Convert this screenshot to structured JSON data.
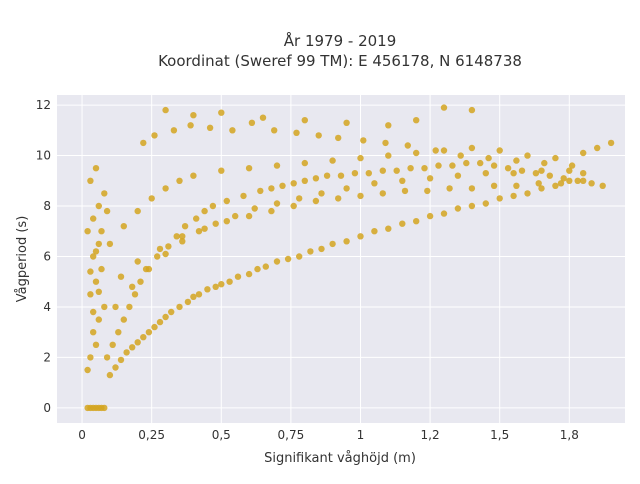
{
  "chart_data": {
    "type": "scatter",
    "title_line1": "År 1979 - 2019",
    "title_line2": "Koordinat (Sweref 99 TM): E 456178, N 6148738",
    "xlabel": "Signifikant våghöjd (m)",
    "ylabel": "Vågperiod (s)",
    "xlim": [
      -0.09,
      1.95
    ],
    "ylim": [
      -0.6,
      12.4
    ],
    "xticks": [
      0,
      0.25,
      0.5,
      0.75,
      1,
      1.25,
      1.5,
      1.75
    ],
    "xtick_labels": [
      "0",
      "0,25",
      "0,5",
      "0,75",
      "1",
      "1,2",
      "1,5",
      "1,8"
    ],
    "yticks": [
      0,
      2,
      4,
      6,
      8,
      10,
      12
    ],
    "ytick_labels": [
      "0",
      "2",
      "4",
      "6",
      "8",
      "10",
      "12"
    ],
    "grid": true,
    "colors": {
      "point": "#D4A520",
      "plot_bg": "#E8E8F0",
      "grid": "#FFFFFF",
      "text": "#333333"
    },
    "series": [
      {
        "x": [
          0.02,
          0.03,
          0.04,
          0.05,
          0.06,
          0.07,
          0.08,
          0.02,
          0.03,
          0.05,
          0.04,
          0.06,
          0.08,
          0.03,
          0.05,
          0.07,
          0.04,
          0.06,
          0.02,
          0.04,
          0.06,
          0.08,
          0.03,
          0.05,
          0.04,
          0.06,
          0.03,
          0.05,
          0.07,
          0.09,
          0.1,
          0.12,
          0.14,
          0.16,
          0.18,
          0.2,
          0.22,
          0.24,
          0.26,
          0.28,
          0.3,
          0.32,
          0.35,
          0.38,
          0.4,
          0.42,
          0.45,
          0.48,
          0.5,
          0.53,
          0.56,
          0.6,
          0.63,
          0.66,
          0.7,
          0.74,
          0.78,
          0.82,
          0.86,
          0.9,
          0.95,
          1.0,
          1.05,
          1.1,
          1.15,
          1.2,
          1.25,
          1.3,
          1.35,
          1.4,
          1.45,
          1.5,
          1.55,
          1.6,
          1.65,
          1.7,
          1.75,
          1.8,
          0.1,
          0.15,
          0.2,
          0.25,
          0.3,
          0.35,
          0.4,
          0.5,
          0.6,
          0.7,
          0.8,
          0.9,
          1.0,
          1.1,
          1.2,
          1.3,
          1.4,
          1.5,
          1.6,
          1.7,
          1.8,
          1.85,
          1.9,
          0.12,
          0.18,
          0.24,
          0.3,
          0.36,
          0.42,
          0.48,
          0.55,
          0.62,
          0.7,
          0.78,
          0.86,
          0.95,
          1.05,
          1.15,
          1.25,
          1.35,
          1.45,
          1.55,
          1.65,
          1.75,
          0.09,
          0.11,
          0.13,
          0.15,
          0.17,
          0.19,
          0.21,
          0.23,
          0.27,
          0.31,
          0.34,
          0.37,
          0.41,
          0.44,
          0.47,
          0.52,
          0.58,
          0.64,
          0.68,
          0.72,
          0.76,
          0.8,
          0.84,
          0.88,
          0.93,
          0.98,
          1.03,
          1.08,
          1.13,
          1.18,
          1.23,
          1.28,
          1.33,
          1.38,
          1.43,
          1.48,
          1.53,
          1.58,
          1.63,
          1.68,
          1.73,
          1.78,
          1.83,
          1.87,
          0.22,
          0.26,
          0.33,
          0.39,
          0.46,
          0.54,
          0.61,
          0.69,
          0.77,
          0.85,
          0.92,
          1.01,
          1.09,
          1.17,
          1.27,
          1.36,
          1.46,
          1.56,
          1.66,
          1.76,
          0.14,
          0.2,
          0.28,
          0.36,
          0.44,
          0.52,
          0.6,
          0.68,
          0.76,
          0.84,
          0.92,
          1.0,
          1.08,
          1.16,
          1.24,
          1.32,
          1.4,
          1.48,
          1.56,
          1.64,
          1.72,
          1.8,
          0.3,
          0.4,
          0.5,
          0.65,
          0.8,
          0.95,
          1.1,
          1.2,
          1.3,
          1.4
        ],
        "y": [
          0,
          0,
          0,
          0,
          0,
          0,
          0,
          1.5,
          2.0,
          2.5,
          3.0,
          3.5,
          4.0,
          4.5,
          5.0,
          5.5,
          6.0,
          6.5,
          7.0,
          7.5,
          8.0,
          8.5,
          9.0,
          9.5,
          3.8,
          4.6,
          5.4,
          6.2,
          7.0,
          7.8,
          1.3,
          1.6,
          1.9,
          2.2,
          2.4,
          2.6,
          2.8,
          3.0,
          3.2,
          3.4,
          3.6,
          3.8,
          4.0,
          4.2,
          4.4,
          4.5,
          4.7,
          4.8,
          4.9,
          5.0,
          5.2,
          5.3,
          5.5,
          5.6,
          5.8,
          5.9,
          6.0,
          6.2,
          6.3,
          6.5,
          6.6,
          6.8,
          7.0,
          7.1,
          7.3,
          7.4,
          7.6,
          7.7,
          7.9,
          8.0,
          8.1,
          8.3,
          8.4,
          8.5,
          8.7,
          8.8,
          9.0,
          9.3,
          6.5,
          7.2,
          7.8,
          8.3,
          8.7,
          9.0,
          9.2,
          9.4,
          9.5,
          9.6,
          9.7,
          9.8,
          9.9,
          10.0,
          10.1,
          10.2,
          10.3,
          10.2,
          10.0,
          9.9,
          10.1,
          10.3,
          10.5,
          4.0,
          4.8,
          5.5,
          6.1,
          6.6,
          7.0,
          7.3,
          7.6,
          7.9,
          8.1,
          8.3,
          8.5,
          8.7,
          8.9,
          9.0,
          9.1,
          9.2,
          9.3,
          9.3,
          9.4,
          9.4,
          2.0,
          2.5,
          3.0,
          3.5,
          4.0,
          4.5,
          5.0,
          5.5,
          6.0,
          6.4,
          6.8,
          7.2,
          7.5,
          7.8,
          8.0,
          8.2,
          8.4,
          8.6,
          8.7,
          8.8,
          8.9,
          9.0,
          9.1,
          9.2,
          9.2,
          9.3,
          9.3,
          9.4,
          9.4,
          9.5,
          9.5,
          9.6,
          9.6,
          9.7,
          9.7,
          9.6,
          9.5,
          9.4,
          9.3,
          9.2,
          9.1,
          9.0,
          8.9,
          8.8,
          10.5,
          10.8,
          11.0,
          11.2,
          11.1,
          11.0,
          11.3,
          11.0,
          10.9,
          10.8,
          10.7,
          10.6,
          10.5,
          10.4,
          10.2,
          10.0,
          9.9,
          9.8,
          9.7,
          9.6,
          5.2,
          5.8,
          6.3,
          6.8,
          7.1,
          7.4,
          7.6,
          7.8,
          8.0,
          8.2,
          8.3,
          8.4,
          8.5,
          8.6,
          8.6,
          8.7,
          8.7,
          8.8,
          8.8,
          8.9,
          8.9,
          9.0,
          11.8,
          11.6,
          11.7,
          11.5,
          11.4,
          11.3,
          11.2,
          11.4,
          11.9,
          11.8
        ]
      }
    ]
  }
}
